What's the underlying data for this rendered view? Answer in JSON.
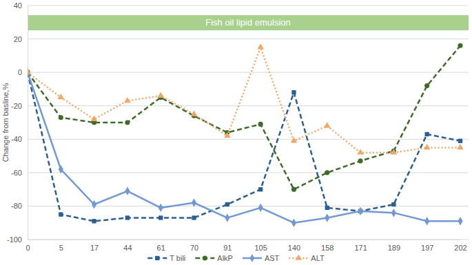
{
  "chart_data": {
    "type": "line",
    "y_label": "Change from basline,%",
    "annotations": [
      "Fish oil lipid emulsion"
    ],
    "categories": [
      "0",
      "5",
      "17",
      "44",
      "61",
      "70",
      "91",
      "105",
      "140",
      "158",
      "171",
      "189",
      "197",
      "202"
    ],
    "series": [
      {
        "name": "T bili",
        "color": "#2a5f94",
        "marker": "square",
        "line_style": "dashed",
        "values": [
          0,
          -85,
          -89,
          -87,
          -87,
          -87,
          -79,
          -70,
          -12,
          -81,
          -83,
          -79,
          -37,
          -41
        ]
      },
      {
        "name": "AlkP",
        "color": "#3e6b2a",
        "marker": "circle",
        "line_style": "dashed",
        "values": [
          0,
          -27,
          -30,
          -30,
          -15,
          -26,
          -36,
          -31,
          -70,
          -60,
          -53,
          -47,
          -8,
          16
        ]
      },
      {
        "name": "AST",
        "color": "#7399d4",
        "marker": "diamond",
        "line_style": "solid",
        "values": [
          0,
          -58,
          -79,
          -71,
          -81,
          -78,
          -87,
          -81,
          -90,
          -87,
          -83,
          -84,
          -89,
          -89
        ]
      },
      {
        "name": "ALT",
        "color": "#f2a766",
        "marker": "triangle",
        "line_style": "dotted",
        "values": [
          0,
          -15,
          -28,
          -17,
          -14,
          -25,
          -38,
          15,
          -41,
          -32,
          -48,
          -48,
          -45,
          -45
        ]
      }
    ],
    "ylim": [
      -100,
      40
    ],
    "yticks": [
      -100,
      -80,
      -60,
      -40,
      -20,
      0,
      20,
      40
    ],
    "grid": true,
    "legend": "bottom"
  }
}
